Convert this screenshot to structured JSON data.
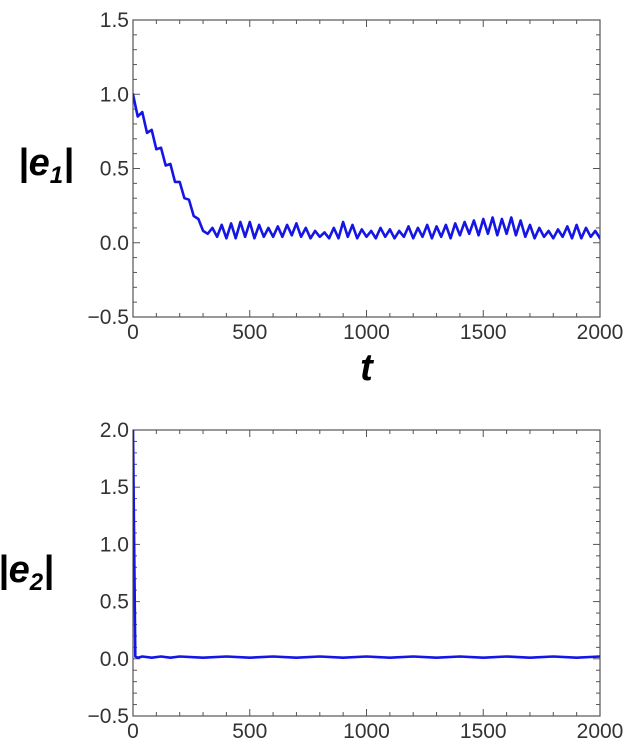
{
  "chart_data": [
    {
      "type": "line",
      "ylabel_main": "|e",
      "ylabel_sub": "1",
      "ylabel_end": "|",
      "xlabel": "t",
      "xlim": [
        0,
        2000
      ],
      "ylim": [
        -0.5,
        1.5
      ],
      "xticks": [
        0,
        500,
        1000,
        1500,
        2000
      ],
      "xtick_labels": [
        "0",
        "500",
        "1000",
        "1500",
        "2000"
      ],
      "yticks": [
        -0.5,
        0.0,
        0.5,
        1.0,
        1.5
      ],
      "ytick_labels": [
        "−0.5",
        "0.0",
        "0.5",
        "1.0",
        "1.5"
      ],
      "grid": false,
      "series": [
        {
          "color": "#1515e6",
          "x": [
            0,
            20,
            40,
            60,
            80,
            100,
            120,
            140,
            160,
            180,
            200,
            220,
            240,
            260,
            280,
            300,
            320,
            340,
            360,
            380,
            400,
            420,
            440,
            460,
            480,
            500,
            520,
            540,
            560,
            580,
            600,
            620,
            640,
            660,
            680,
            700,
            720,
            740,
            760,
            780,
            800,
            820,
            840,
            860,
            880,
            900,
            920,
            940,
            960,
            980,
            1000,
            1020,
            1040,
            1060,
            1080,
            1100,
            1120,
            1140,
            1160,
            1180,
            1200,
            1220,
            1240,
            1260,
            1280,
            1300,
            1320,
            1340,
            1360,
            1380,
            1400,
            1420,
            1440,
            1460,
            1480,
            1500,
            1520,
            1540,
            1560,
            1580,
            1600,
            1620,
            1640,
            1660,
            1680,
            1700,
            1720,
            1740,
            1760,
            1780,
            1800,
            1820,
            1840,
            1860,
            1880,
            1900,
            1920,
            1940,
            1960,
            1980,
            2000
          ],
          "y": [
            1.0,
            0.85,
            0.88,
            0.74,
            0.76,
            0.63,
            0.64,
            0.52,
            0.53,
            0.41,
            0.41,
            0.3,
            0.29,
            0.18,
            0.16,
            0.08,
            0.06,
            0.1,
            0.04,
            0.12,
            0.03,
            0.13,
            0.03,
            0.14,
            0.04,
            0.14,
            0.03,
            0.12,
            0.04,
            0.1,
            0.04,
            0.11,
            0.04,
            0.12,
            0.05,
            0.13,
            0.04,
            0.1,
            0.03,
            0.08,
            0.04,
            0.07,
            0.03,
            0.1,
            0.03,
            0.14,
            0.04,
            0.12,
            0.03,
            0.09,
            0.04,
            0.08,
            0.03,
            0.1,
            0.04,
            0.09,
            0.03,
            0.08,
            0.04,
            0.11,
            0.03,
            0.1,
            0.04,
            0.12,
            0.03,
            0.11,
            0.04,
            0.12,
            0.03,
            0.13,
            0.05,
            0.14,
            0.06,
            0.15,
            0.05,
            0.16,
            0.06,
            0.17,
            0.05,
            0.16,
            0.06,
            0.17,
            0.05,
            0.15,
            0.04,
            0.12,
            0.03,
            0.1,
            0.04,
            0.08,
            0.03,
            0.09,
            0.04,
            0.11,
            0.03,
            0.12,
            0.03,
            0.1,
            0.04,
            0.08,
            0.03
          ]
        }
      ]
    },
    {
      "type": "line",
      "ylabel_main": "|e",
      "ylabel_sub": "2",
      "ylabel_end": "|",
      "xlabel": "",
      "xlim": [
        0,
        2000
      ],
      "ylim": [
        -0.5,
        2.0
      ],
      "xticks": [
        0,
        500,
        1000,
        1500,
        2000
      ],
      "xtick_labels": [
        "0",
        "500",
        "1000",
        "1500",
        "2000"
      ],
      "yticks": [
        -0.5,
        0.0,
        0.5,
        1.0,
        1.5,
        2.0
      ],
      "ytick_labels": [
        "−0.5",
        "0.0",
        "0.5",
        "1.0",
        "1.5",
        "2.0"
      ],
      "grid": false,
      "series": [
        {
          "color": "#1515e6",
          "x": [
            0,
            10,
            20,
            40,
            80,
            120,
            160,
            200,
            300,
            400,
            500,
            600,
            700,
            800,
            900,
            1000,
            1100,
            1200,
            1300,
            1400,
            1500,
            1600,
            1700,
            1800,
            1900,
            2000
          ],
          "y": [
            2.0,
            0.02,
            0.01,
            0.02,
            0.01,
            0.02,
            0.01,
            0.02,
            0.01,
            0.02,
            0.01,
            0.02,
            0.01,
            0.02,
            0.01,
            0.02,
            0.01,
            0.02,
            0.01,
            0.02,
            0.01,
            0.02,
            0.01,
            0.02,
            0.01,
            0.02
          ]
        }
      ]
    }
  ]
}
